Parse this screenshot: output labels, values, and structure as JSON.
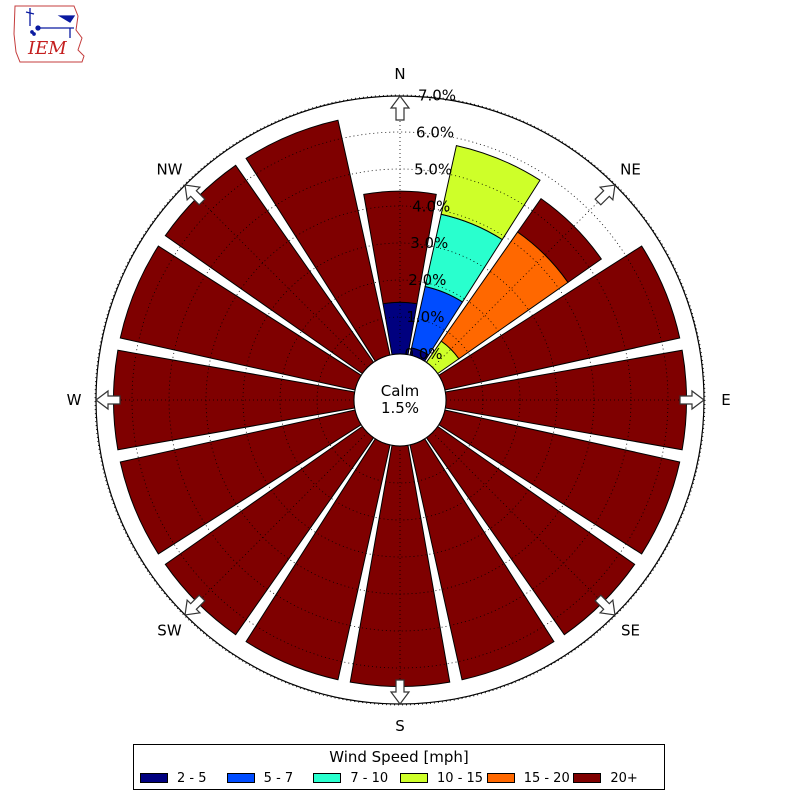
{
  "logo": {
    "text": "IEM"
  },
  "legend": {
    "title": "Wind Speed [mph]",
    "items": [
      {
        "label": "2 - 5",
        "color": "#00007f"
      },
      {
        "label": "5 - 7",
        "color": "#004cff"
      },
      {
        "label": "7 - 10",
        "color": "#29ffce"
      },
      {
        "label": "10 - 15",
        "color": "#ceff29"
      },
      {
        "label": "15 - 20",
        "color": "#ff6800"
      },
      {
        "label": "20+",
        "color": "#7f0000"
      }
    ]
  },
  "chart_data": {
    "type": "windrose",
    "center_label": "Calm",
    "center_value": "1.5%",
    "radial_ticks": [
      "0.0%",
      "1.0%",
      "2.0%",
      "3.0%",
      "4.0%",
      "5.0%",
      "6.0%",
      "7.0%"
    ],
    "radial_range": [
      0,
      7
    ],
    "grid": true,
    "legend_placement": "bottom",
    "compass_labels": [
      "N",
      "NE",
      "E",
      "SE",
      "S",
      "SW",
      "W",
      "NW"
    ],
    "directions": [
      "N",
      "NNE",
      "NE",
      "ENE",
      "E",
      "ESE",
      "SE",
      "SSE",
      "S",
      "SSW",
      "SW",
      "WSW",
      "W",
      "WNW",
      "NW",
      "NNW"
    ],
    "series": [
      {
        "name": "2 - 5",
        "values": [
          1.4,
          0.2,
          0,
          0,
          0,
          0,
          0,
          0,
          0,
          0,
          0,
          0,
          0,
          0,
          0,
          0
        ]
      },
      {
        "name": "5 - 7",
        "values": [
          0,
          1.7,
          0,
          0,
          0,
          0,
          0,
          0,
          0,
          0,
          0,
          0,
          0,
          0,
          0,
          0
        ]
      },
      {
        "name": "7 - 10",
        "values": [
          0,
          2.0,
          0,
          0,
          0,
          0,
          0,
          0,
          0,
          0,
          0,
          0,
          0,
          0,
          0,
          0
        ]
      },
      {
        "name": "10 - 15",
        "values": [
          0,
          1.9,
          0.7,
          0,
          0,
          0,
          0,
          0,
          0,
          0,
          0,
          0,
          0,
          0,
          0,
          0
        ]
      },
      {
        "name": "15 - 20",
        "values": [
          0,
          0,
          3.6,
          0,
          0,
          0,
          0,
          0,
          0,
          0,
          0,
          0,
          0,
          0,
          0,
          0
        ]
      },
      {
        "name": "20+",
        "values": [
          3.0,
          0,
          1.1,
          6.5,
          6.5,
          6.5,
          6.5,
          6.5,
          6.5,
          6.5,
          6.5,
          6.5,
          6.5,
          6.5,
          6.5,
          6.5
        ]
      }
    ]
  }
}
